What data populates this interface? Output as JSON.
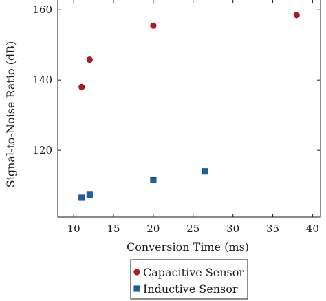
{
  "chart_data": {
    "type": "scatter",
    "xlabel": "Conversion Time (ms)",
    "ylabel": "Signal-to-Noise Ratio (dB)",
    "xlim": [
      8,
      41
    ],
    "ylim": [
      101,
      162
    ],
    "xticks": [
      10,
      15,
      20,
      25,
      30,
      35,
      40
    ],
    "yticks": [
      120,
      140,
      160
    ],
    "grid": false,
    "legend_position": "bottom",
    "series": [
      {
        "name": "Capacitive Sensor",
        "marker": "circle",
        "color": "#c0141c",
        "points": [
          {
            "x": 11,
            "y": 138
          },
          {
            "x": 12,
            "y": 145.8
          },
          {
            "x": 20,
            "y": 155.5
          },
          {
            "x": 38,
            "y": 158.5
          }
        ]
      },
      {
        "name": "Inductive Sensor",
        "marker": "square",
        "color": "#1f5f9e",
        "points": [
          {
            "x": 11,
            "y": 106.5
          },
          {
            "x": 12,
            "y": 107.3
          },
          {
            "x": 20,
            "y": 111.5
          },
          {
            "x": 26.5,
            "y": 114
          }
        ]
      }
    ]
  }
}
